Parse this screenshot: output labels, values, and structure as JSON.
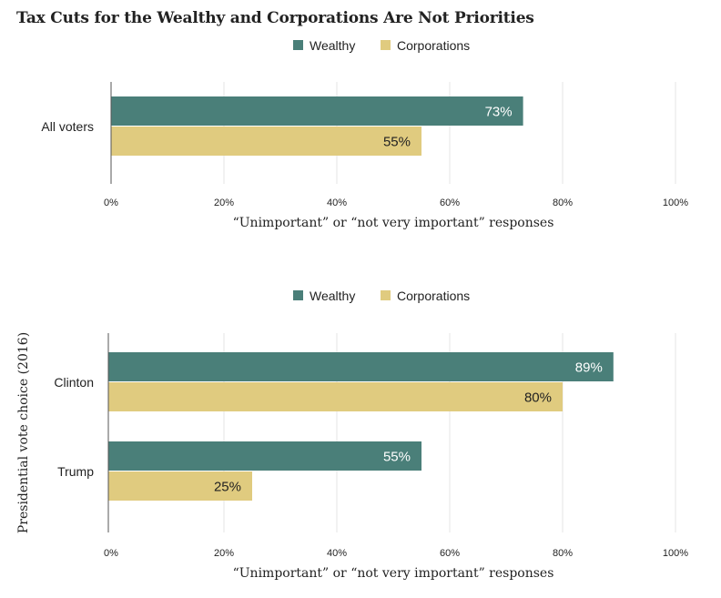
{
  "title": "Tax Cuts for the Wealthy and Corporations Are Not Priorities",
  "colors": {
    "wealthy": "#4a7f79",
    "corporations": "#e0cb7f",
    "grid": "#e6e6e6"
  },
  "chart_data": [
    {
      "type": "bar",
      "orientation": "horizontal",
      "categories": [
        "All voters"
      ],
      "series": [
        {
          "name": "Wealthy",
          "values": [
            73
          ],
          "labels": [
            "73%"
          ]
        },
        {
          "name": "Corporations",
          "values": [
            55
          ],
          "labels": [
            "55%"
          ]
        }
      ],
      "xlabel": "“Unimportant” or “not very important” responses",
      "ylabel": "",
      "xlim": [
        0,
        100
      ],
      "xticks": [
        "0%",
        "20%",
        "40%",
        "60%",
        "80%",
        "100%"
      ],
      "legend": "top",
      "grid": true
    },
    {
      "type": "bar",
      "orientation": "horizontal",
      "categories": [
        "Clinton",
        "Trump"
      ],
      "series": [
        {
          "name": "Wealthy",
          "values": [
            89,
            55
          ],
          "labels": [
            "89%",
            "55%"
          ]
        },
        {
          "name": "Corporations",
          "values": [
            80,
            25
          ],
          "labels": [
            "80%",
            "25%"
          ]
        }
      ],
      "xlabel": "“Unimportant” or “not very important” responses",
      "ylabel": "Presidential vote choice (2016)",
      "xlim": [
        0,
        100
      ],
      "xticks": [
        "0%",
        "20%",
        "40%",
        "60%",
        "80%",
        "100%"
      ],
      "legend": "top",
      "grid": true
    }
  ]
}
